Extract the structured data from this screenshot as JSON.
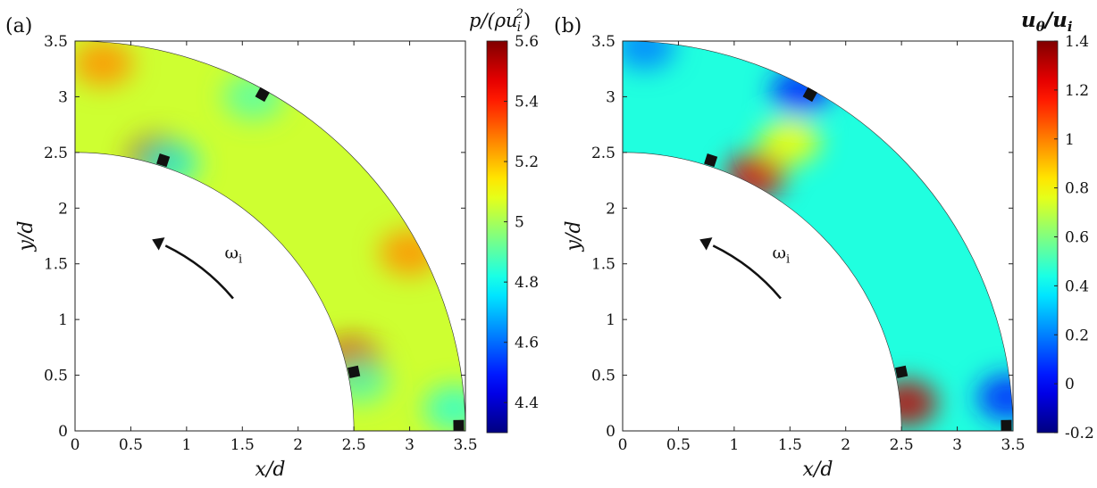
{
  "chart_data": [
    {
      "type": "heatmap",
      "panel_label": "(a)",
      "xlabel": "x/d",
      "ylabel": "y/d",
      "xlim": [
        0,
        3.5
      ],
      "ylim": [
        0,
        3.5
      ],
      "x_ticks": [
        "0",
        "0.5",
        "1",
        "1.5",
        "2",
        "2.5",
        "3",
        "3.5"
      ],
      "y_ticks": [
        "0",
        "0.5",
        "1",
        "1.5",
        "2",
        "2.5",
        "3",
        "3.5"
      ],
      "domain": {
        "shape": "quarter annulus",
        "inner_radius": 2.5,
        "outer_radius": 3.5
      },
      "colorbar": {
        "label": "p/(ρu_i^2)",
        "label_parts": [
          "p/(ρu",
          "i",
          "2",
          ")"
        ],
        "range": [
          4.3,
          5.6
        ],
        "ticks": [
          "4.4",
          "4.6",
          "4.8",
          "5",
          "5.2",
          "5.4",
          "5.6"
        ],
        "tick_values": [
          4.4,
          4.6,
          4.8,
          5.0,
          5.2,
          5.4,
          5.6
        ],
        "colormap": "jet"
      },
      "field": {
        "background_value": 5.05,
        "features": [
          {
            "name": "inner-top high",
            "x": 0.75,
            "y": 2.45,
            "value": 5.55
          },
          {
            "name": "inner-low high",
            "x": 2.48,
            "y": 0.62,
            "value": 5.5
          },
          {
            "name": "outer-top high",
            "x": 0.25,
            "y": 3.3,
            "value": 5.25
          },
          {
            "name": "outer-mid high",
            "x": 3.0,
            "y": 1.6,
            "value": 5.25
          },
          {
            "name": "low behind blade",
            "x": 0.85,
            "y": 2.4,
            "value": 4.85
          },
          {
            "name": "low behind blade 2",
            "x": 2.55,
            "y": 0.45,
            "value": 4.9
          },
          {
            "name": "low near top blade",
            "x": 1.6,
            "y": 3.0,
            "value": 4.9
          },
          {
            "name": "low near bottom right",
            "x": 3.4,
            "y": 0.2,
            "value": 4.85
          }
        ]
      },
      "blades": [
        {
          "x": 0.79,
          "y": 2.43
        },
        {
          "x": 1.68,
          "y": 3.02
        },
        {
          "x": 2.5,
          "y": 0.53
        },
        {
          "x": 3.44,
          "y": 0.05
        }
      ],
      "rotation_arrow": {
        "label": "ω",
        "subscript": "i",
        "direction": "counter-clockwise"
      }
    },
    {
      "type": "heatmap",
      "panel_label": "(b)",
      "xlabel": "x/d",
      "ylabel": "y/d",
      "xlim": [
        0,
        3.5
      ],
      "ylim": [
        0,
        3.5
      ],
      "x_ticks": [
        "0",
        "0.5",
        "1",
        "1.5",
        "2",
        "2.5",
        "3",
        "3.5"
      ],
      "y_ticks": [
        "0",
        "0.5",
        "1",
        "1.5",
        "2",
        "2.5",
        "3",
        "3.5"
      ],
      "domain": {
        "shape": "quarter annulus",
        "inner_radius": 2.5,
        "outer_radius": 3.5
      },
      "colorbar": {
        "label": "u_θ/u_i",
        "label_parts": [
          "u",
          "θ",
          "/u",
          "i"
        ],
        "range": [
          -0.2,
          1.4
        ],
        "ticks": [
          "-0.2",
          "0",
          "0.2",
          "0.4",
          "0.6",
          "0.8",
          "1",
          "1.2",
          "1.4"
        ],
        "tick_values": [
          -0.2,
          0.0,
          0.2,
          0.4,
          0.6,
          0.8,
          1.0,
          1.2,
          1.4
        ],
        "colormap": "jet"
      },
      "field": {
        "background_value": 0.45,
        "features": [
          {
            "name": "inner wall high",
            "x": 1.2,
            "y": 2.3,
            "value": 1.25
          },
          {
            "name": "inner bottom high",
            "x": 2.55,
            "y": 0.25,
            "value": 1.3
          },
          {
            "name": "mid-band yellow",
            "x": 1.5,
            "y": 2.6,
            "value": 0.8
          },
          {
            "name": "top outer low",
            "x": 1.6,
            "y": 3.05,
            "value": 0.05
          },
          {
            "name": "bottom outer low",
            "x": 3.45,
            "y": 0.3,
            "value": 0.05
          },
          {
            "name": "top left outer",
            "x": 0.2,
            "y": 3.45,
            "value": 0.2
          }
        ]
      },
      "blades": [
        {
          "x": 0.79,
          "y": 2.43
        },
        {
          "x": 1.68,
          "y": 3.02
        },
        {
          "x": 2.5,
          "y": 0.53
        },
        {
          "x": 3.44,
          "y": 0.05
        }
      ],
      "rotation_arrow": {
        "label": "ω",
        "subscript": "i",
        "direction": "counter-clockwise"
      }
    }
  ]
}
